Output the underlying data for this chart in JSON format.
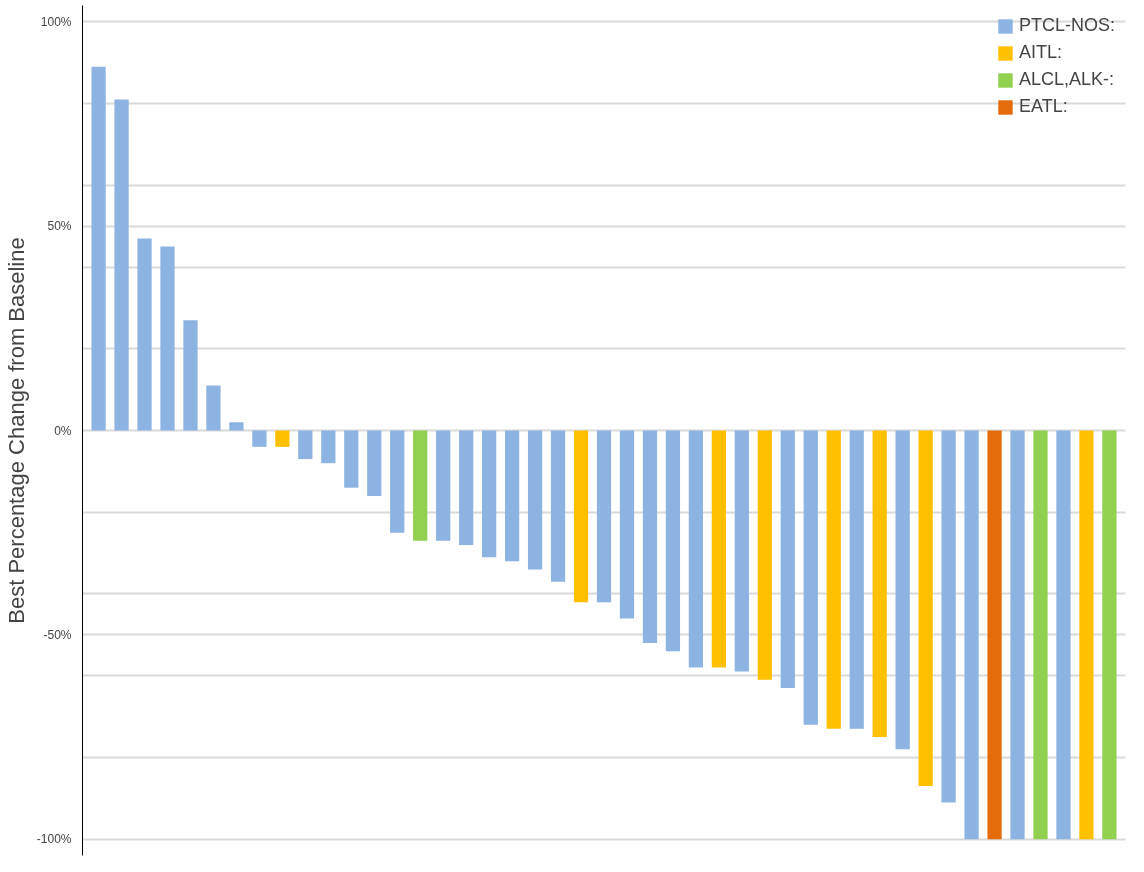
{
  "chart_data": {
    "type": "bar",
    "ylabel": "Best Percentage Change from Baseline",
    "categories": [
      null,
      null,
      null,
      null,
      null,
      null,
      null,
      null,
      null,
      null,
      null,
      null,
      null,
      null,
      null,
      null,
      null,
      null,
      null,
      null,
      null,
      null,
      null,
      null,
      null,
      null,
      null,
      null,
      null,
      null,
      null,
      null,
      null,
      null,
      null,
      null,
      null,
      null,
      null,
      null,
      null,
      null,
      null,
      null,
      null
    ],
    "series": [
      {
        "name": "PTCL-NOS:",
        "color": "#8db3e2",
        "values": [
          89,
          81,
          47,
          45,
          27,
          11,
          2,
          -4,
          null,
          -7,
          -8,
          -14,
          -16,
          -25,
          null,
          -27,
          -28,
          -31,
          -32,
          -34,
          -37,
          null,
          -42,
          -46,
          -52,
          -54,
          -58,
          null,
          -59,
          null,
          -63,
          -72,
          null,
          -73,
          null,
          -78,
          null,
          -91,
          -100,
          null,
          -100,
          null,
          -100,
          null,
          null
        ]
      },
      {
        "name": "AITL:",
        "color": "#ffc000",
        "values": [
          null,
          null,
          null,
          null,
          null,
          null,
          null,
          null,
          -4,
          null,
          null,
          null,
          null,
          null,
          null,
          null,
          null,
          null,
          null,
          null,
          null,
          -42,
          null,
          null,
          null,
          null,
          null,
          -58,
          null,
          -61,
          null,
          null,
          -73,
          null,
          -75,
          null,
          -87,
          null,
          null,
          null,
          null,
          null,
          null,
          -100,
          null
        ]
      },
      {
        "name": "ALCL,ALK-:",
        "color": "#92d050",
        "values": [
          null,
          null,
          null,
          null,
          null,
          null,
          null,
          null,
          null,
          null,
          null,
          null,
          null,
          null,
          -27,
          null,
          null,
          null,
          null,
          null,
          null,
          null,
          null,
          null,
          null,
          null,
          null,
          null,
          null,
          null,
          null,
          null,
          null,
          null,
          null,
          null,
          null,
          null,
          null,
          null,
          null,
          -100,
          null,
          null,
          -100
        ]
      },
      {
        "name": "EATL:",
        "color": "#e46c0a",
        "values": [
          null,
          null,
          null,
          null,
          null,
          null,
          null,
          null,
          null,
          null,
          null,
          null,
          null,
          null,
          null,
          null,
          null,
          null,
          null,
          null,
          null,
          null,
          null,
          null,
          null,
          null,
          null,
          null,
          null,
          null,
          null,
          null,
          null,
          null,
          null,
          null,
          null,
          null,
          null,
          -100,
          null,
          null,
          null,
          null,
          null
        ]
      }
    ],
    "ylim": [
      -100,
      100
    ],
    "yticks": [
      {
        "value": -100,
        "label": "-100%"
      },
      {
        "value": -80,
        "label": null
      },
      {
        "value": -60,
        "label": null
      },
      {
        "value": -50,
        "label": "-50%"
      },
      {
        "value": -40,
        "label": null
      },
      {
        "value": -20,
        "label": null
      },
      {
        "value": 0,
        "label": "0%"
      },
      {
        "value": 20,
        "label": null
      },
      {
        "value": 40,
        "label": null
      },
      {
        "value": 50,
        "label": "50%"
      },
      {
        "value": 60,
        "label": null
      },
      {
        "value": 80,
        "label": null
      },
      {
        "value": 100,
        "label": "100%"
      }
    ],
    "grid": "y",
    "legend": "top right"
  }
}
